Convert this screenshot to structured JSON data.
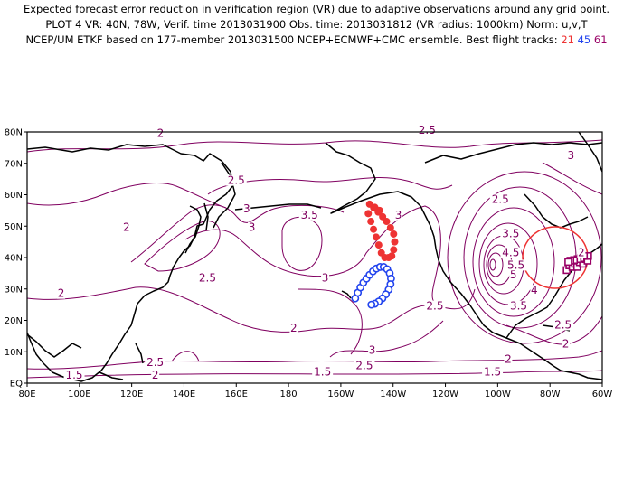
{
  "header": {
    "line1": "Expected forecast error reduction in verification region (VR) due to adaptive observations around any grid point.",
    "line2": "PLOT 4 VR: 40N, 78W, Verif. time 2013031900 Obs. time: 2013031812 (VR radius: 1000km) Norm: u,v,T",
    "line3": "NCEP/UM ETKF based on 177-member 2013031500 NCEP+ECMWF+CMC ensemble. Best flight tracks:",
    "tracks": [
      {
        "label": "21",
        "color": "#ee3333"
      },
      {
        "label": "45",
        "color": "#2244ee"
      },
      {
        "label": "61",
        "color": "#990066"
      }
    ]
  },
  "map": {
    "lon_ticks": [
      "80E",
      "100E",
      "120E",
      "140E",
      "160E",
      "180",
      "160W",
      "140W",
      "120W",
      "100W",
      "80W",
      "60W"
    ],
    "lat_ticks": [
      "EQ",
      "10N",
      "20N",
      "30N",
      "40N",
      "50N",
      "60N",
      "70N",
      "80N"
    ],
    "contour_color": "#800060",
    "contour_labels": [
      {
        "text": "2",
        "lon": 118,
        "lat": 49
      },
      {
        "text": "2",
        "lon": 131,
        "lat": 79
      },
      {
        "text": "2.5",
        "lon": 160,
        "lat": 64
      },
      {
        "text": "3",
        "lon": 164,
        "lat": 55
      },
      {
        "text": "3",
        "lon": 166,
        "lat": 49
      },
      {
        "text": "3.5",
        "lon": 188,
        "lat": 53
      },
      {
        "text": "2.5",
        "lon": 149,
        "lat": 33
      },
      {
        "text": "2",
        "lon": 93,
        "lat": 28
      },
      {
        "text": "2.5",
        "lon": 233,
        "lat": 80
      },
      {
        "text": "3",
        "lon": 194,
        "lat": 33
      },
      {
        "text": "3",
        "lon": 222,
        "lat": 53
      },
      {
        "text": "2.5",
        "lon": 236,
        "lat": 24
      },
      {
        "text": "2",
        "lon": 182,
        "lat": 17
      },
      {
        "text": "3",
        "lon": 212,
        "lat": 10
      },
      {
        "text": "2.5",
        "lon": 209,
        "lat": 5
      },
      {
        "text": "2.5",
        "lon": 129,
        "lat": 6
      },
      {
        "text": "2",
        "lon": 129,
        "lat": 2
      },
      {
        "text": "1.5",
        "lon": 98,
        "lat": 2
      },
      {
        "text": "1.5",
        "lon": 193,
        "lat": 3
      },
      {
        "text": "1.5",
        "lon": 258,
        "lat": 3
      },
      {
        "text": "2",
        "lon": 264,
        "lat": 7
      },
      {
        "text": "2.5",
        "lon": 261,
        "lat": 58
      },
      {
        "text": "3",
        "lon": 288,
        "lat": 72
      },
      {
        "text": "3.5",
        "lon": 265,
        "lat": 47
      },
      {
        "text": "4.5",
        "lon": 265,
        "lat": 41
      },
      {
        "text": "5",
        "lon": 266,
        "lat": 34
      },
      {
        "text": "5.5",
        "lon": 267,
        "lat": 37
      },
      {
        "text": "4",
        "lon": 274,
        "lat": 29
      },
      {
        "text": "3.5",
        "lon": 268,
        "lat": 24
      },
      {
        "text": "2.5",
        "lon": 285,
        "lat": 18
      },
      {
        "text": "2",
        "lon": 286,
        "lat": 12
      },
      {
        "text": "2",
        "lon": 292,
        "lat": 41
      }
    ],
    "verification_region": {
      "lon": 282,
      "lat": 40
    },
    "tracks": {
      "t21": [
        {
          "lon": 210.5,
          "lat": 54
        },
        {
          "lon": 211.5,
          "lat": 51.5
        },
        {
          "lon": 212.5,
          "lat": 49
        },
        {
          "lon": 213.5,
          "lat": 46.5
        },
        {
          "lon": 214.5,
          "lat": 44
        },
        {
          "lon": 215.5,
          "lat": 41.5
        },
        {
          "lon": 216.8,
          "lat": 40
        },
        {
          "lon": 218.3,
          "lat": 40
        },
        {
          "lon": 219.5,
          "lat": 40.5
        },
        {
          "lon": 220.2,
          "lat": 42.5
        },
        {
          "lon": 220.6,
          "lat": 45
        },
        {
          "lon": 220.2,
          "lat": 47.5
        },
        {
          "lon": 219,
          "lat": 49.5
        },
        {
          "lon": 217.5,
          "lat": 51.5
        },
        {
          "lon": 216,
          "lat": 53
        },
        {
          "lon": 214.3,
          "lat": 54.5
        },
        {
          "lon": 212.6,
          "lat": 55.8
        },
        {
          "lon": 211,
          "lat": 57
        },
        {
          "lon": 213,
          "lat": 56
        },
        {
          "lon": 214.8,
          "lat": 55
        }
      ],
      "t45": [
        {
          "lon": 205.5,
          "lat": 27
        },
        {
          "lon": 206.5,
          "lat": 28.8
        },
        {
          "lon": 207.5,
          "lat": 30.5
        },
        {
          "lon": 208.6,
          "lat": 32
        },
        {
          "lon": 209.8,
          "lat": 33.3
        },
        {
          "lon": 211,
          "lat": 34.5
        },
        {
          "lon": 212.3,
          "lat": 35.6
        },
        {
          "lon": 213.6,
          "lat": 36.5
        },
        {
          "lon": 215,
          "lat": 37
        },
        {
          "lon": 216.4,
          "lat": 37
        },
        {
          "lon": 217.7,
          "lat": 36.3
        },
        {
          "lon": 218.7,
          "lat": 35
        },
        {
          "lon": 219.2,
          "lat": 33.3
        },
        {
          "lon": 219,
          "lat": 31.5
        },
        {
          "lon": 218.3,
          "lat": 29.8
        },
        {
          "lon": 217.2,
          "lat": 28.3
        },
        {
          "lon": 215.9,
          "lat": 27
        },
        {
          "lon": 214.5,
          "lat": 26
        },
        {
          "lon": 213,
          "lat": 25.3
        },
        {
          "lon": 211.7,
          "lat": 25
        }
      ],
      "t61": [
        {
          "lon": 286.4,
          "lat": 36
        },
        {
          "lon": 287.4,
          "lat": 37.5
        },
        {
          "lon": 288.6,
          "lat": 37
        },
        {
          "lon": 289.6,
          "lat": 38
        },
        {
          "lon": 290.4,
          "lat": 37
        },
        {
          "lon": 291.4,
          "lat": 38.5
        },
        {
          "lon": 292.6,
          "lat": 38
        },
        {
          "lon": 293.6,
          "lat": 39.5
        },
        {
          "lon": 294.4,
          "lat": 39
        },
        {
          "lon": 294.6,
          "lat": 40.5
        },
        {
          "lon": 293,
          "lat": 40.5
        },
        {
          "lon": 291.8,
          "lat": 39.8
        },
        {
          "lon": 290.6,
          "lat": 39.5
        },
        {
          "lon": 289.2,
          "lat": 39.2
        },
        {
          "lon": 287.8,
          "lat": 39
        },
        {
          "lon": 287,
          "lat": 38.6
        }
      ]
    }
  }
}
